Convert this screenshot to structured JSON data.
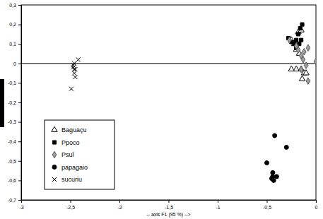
{
  "chart_data": {
    "type": "scatter",
    "x_label": "-- axis F1 (95 %) -->",
    "xlim": [
      -3,
      0
    ],
    "ylim": [
      -0.7,
      0.3
    ],
    "xticks": [
      -3,
      {
        "value": -2.5,
        "label": "-2,5"
      },
      -2,
      {
        "value": -1.5,
        "label": "-1,5"
      },
      -1,
      {
        "value": -0.5,
        "label": "-0,5"
      },
      0
    ],
    "yticks": [
      {
        "value": -0.7,
        "label": "-0,7"
      },
      {
        "value": -0.6,
        "label": "-0,6"
      },
      {
        "value": -0.5,
        "label": "-0,5"
      },
      {
        "value": -0.4,
        "label": "-0,4"
      },
      {
        "value": -0.3,
        "label": "-0,3"
      },
      {
        "value": -0.2,
        "label": "-0,2"
      },
      {
        "value": -0.1,
        "label": "-0,1"
      },
      0,
      {
        "value": 0.1,
        "label": "0,1"
      },
      {
        "value": 0.2,
        "label": "0,2"
      },
      {
        "value": 0.3,
        "label": "0,3"
      }
    ],
    "legend": "left",
    "series": [
      {
        "name": "Baguaçu",
        "color": "#000000",
        "marker": "triangle-open",
        "x": [
          -0.25,
          -0.22,
          -0.2,
          -0.18,
          -0.15,
          -0.17,
          -0.2,
          -0.15,
          -0.12,
          -0.14,
          -0.25,
          -0.1
        ],
        "values": [
          0.12,
          0.1,
          0.07,
          0.16,
          0.17,
          0.05,
          -0.03,
          -0.03,
          -0.05,
          -0.08,
          -0.03,
          -0.05
        ]
      },
      {
        "name": "Ppoco",
        "color": "#000000",
        "marker": "square",
        "x": [
          -0.28,
          -0.25,
          -0.2,
          -0.2,
          -0.18,
          -0.16,
          -0.14,
          -0.17,
          -0.15,
          -0.22
        ],
        "values": [
          0.13,
          0.11,
          0.08,
          0.12,
          0.15,
          0.18,
          0.2,
          0.1,
          0.12,
          0.1
        ]
      },
      {
        "name": "Psul",
        "color": "#a0a0a0",
        "marker": "diamond",
        "x": [
          -0.27,
          -0.2,
          -0.15,
          -0.13,
          -0.18,
          -0.08,
          -0.1,
          -0.08,
          -0.15,
          0,
          -0.12
        ],
        "values": [
          0.12,
          0.09,
          0.04,
          0.02,
          0.07,
          0.08,
          -0.01,
          -0.09,
          -0.03,
          0.01,
          0.06
        ]
      },
      {
        "name": "papagaio",
        "color": "#000000",
        "marker": "circle",
        "x": [
          -0.42,
          -0.3,
          -0.5,
          -0.44,
          -0.44,
          -0.45,
          -0.43,
          -0.4
        ],
        "values": [
          -0.37,
          -0.43,
          -0.51,
          -0.56,
          -0.58,
          -0.59,
          -0.6,
          -0.58
        ]
      },
      {
        "name": "sucuriu",
        "color": "#000000",
        "marker": "x",
        "x": [
          -2.42,
          -2.47,
          -2.47,
          -2.46,
          -2.45,
          -2.46,
          -2.45,
          -2.49,
          -2.46
        ],
        "values": [
          0.02,
          -0.01,
          -0.02,
          -0.03,
          -0.03,
          -0.05,
          -0.07,
          -0.13,
          0
        ]
      }
    ]
  }
}
